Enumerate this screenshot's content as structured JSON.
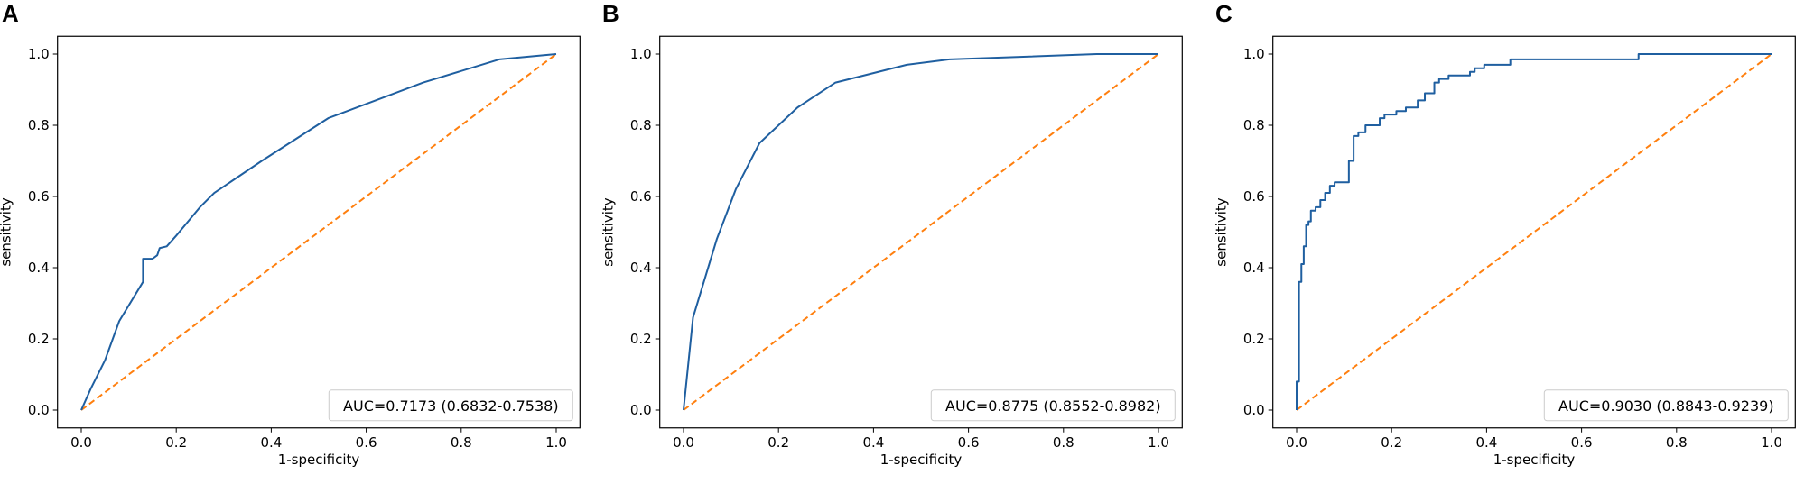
{
  "chart_data": [
    {
      "type": "line",
      "panel_label": "A",
      "xlabel": "1-specificity",
      "ylabel": "sensitivity",
      "xlim": [
        0,
        1
      ],
      "ylim": [
        0,
        1
      ],
      "xticks": [
        "0.0",
        "0.2",
        "0.4",
        "0.6",
        "0.8",
        "1.0"
      ],
      "yticks": [
        "0.0",
        "0.2",
        "0.4",
        "0.6",
        "0.8",
        "1.0"
      ],
      "legend": "AUC=0.7173 (0.6832-0.7538)",
      "legend_position": "lower-right",
      "grid": false,
      "colors": {
        "roc": "#1f5fa0",
        "reference": "#ff7f0e"
      },
      "series": [
        {
          "x": [
            0,
            0.02,
            0.05,
            0.08,
            0.13,
            0.13,
            0.15,
            0.16,
            0.165,
            0.18,
            0.2,
            0.25,
            0.28,
            0.38,
            0.52,
            0.72,
            0.88,
            1.0
          ],
          "y": [
            0,
            0.06,
            0.14,
            0.25,
            0.36,
            0.425,
            0.425,
            0.435,
            0.455,
            0.46,
            0.49,
            0.57,
            0.61,
            0.7,
            0.82,
            0.92,
            0.985,
            1.0
          ]
        },
        {
          "x": [
            0,
            1
          ],
          "y": [
            0,
            1
          ]
        }
      ]
    },
    {
      "type": "line",
      "panel_label": "B",
      "xlabel": "1-specificity",
      "ylabel": "sensitivity",
      "xlim": [
        0,
        1
      ],
      "ylim": [
        0,
        1
      ],
      "xticks": [
        "0.0",
        "0.2",
        "0.4",
        "0.6",
        "0.8",
        "1.0"
      ],
      "yticks": [
        "0.0",
        "0.2",
        "0.4",
        "0.6",
        "0.8",
        "1.0"
      ],
      "legend": "AUC=0.8775 (0.8552-0.8982)",
      "legend_position": "lower-right",
      "grid": false,
      "colors": {
        "roc": "#1f5fa0",
        "reference": "#ff7f0e"
      },
      "series": [
        {
          "x": [
            0,
            0.02,
            0.07,
            0.11,
            0.16,
            0.24,
            0.32,
            0.47,
            0.56,
            0.87,
            1.0
          ],
          "y": [
            0,
            0.26,
            0.48,
            0.62,
            0.75,
            0.85,
            0.92,
            0.97,
            0.985,
            1.0,
            1.0
          ]
        },
        {
          "x": [
            0,
            1
          ],
          "y": [
            0,
            1
          ]
        }
      ]
    },
    {
      "type": "line",
      "panel_label": "C",
      "xlabel": "1-specificity",
      "ylabel": "sensitivity",
      "xlim": [
        0,
        1
      ],
      "ylim": [
        0,
        1
      ],
      "xticks": [
        "0.0",
        "0.2",
        "0.4",
        "0.6",
        "0.8",
        "1.0"
      ],
      "yticks": [
        "0.0",
        "0.2",
        "0.4",
        "0.6",
        "0.8",
        "1.0"
      ],
      "legend": "AUC=0.9030 (0.8843-0.9239)",
      "legend_position": "lower-right",
      "grid": false,
      "colors": {
        "roc": "#1f5fa0",
        "reference": "#ff7f0e"
      },
      "series": [
        {
          "x": [
            0,
            0,
            0.005,
            0.005,
            0.01,
            0.01,
            0.015,
            0.015,
            0.02,
            0.02,
            0.025,
            0.025,
            0.03,
            0.03,
            0.04,
            0.04,
            0.05,
            0.05,
            0.06,
            0.06,
            0.07,
            0.07,
            0.08,
            0.08,
            0.11,
            0.11,
            0.12,
            0.12,
            0.13,
            0.13,
            0.145,
            0.145,
            0.175,
            0.175,
            0.185,
            0.185,
            0.21,
            0.21,
            0.23,
            0.23,
            0.255,
            0.255,
            0.27,
            0.27,
            0.29,
            0.29,
            0.3,
            0.3,
            0.32,
            0.32,
            0.365,
            0.365,
            0.375,
            0.375,
            0.395,
            0.395,
            0.45,
            0.45,
            0.72,
            0.72,
            1.0
          ],
          "y": [
            0,
            0.08,
            0.08,
            0.36,
            0.36,
            0.41,
            0.41,
            0.46,
            0.46,
            0.52,
            0.52,
            0.53,
            0.53,
            0.56,
            0.56,
            0.57,
            0.57,
            0.59,
            0.59,
            0.61,
            0.61,
            0.63,
            0.63,
            0.64,
            0.64,
            0.7,
            0.7,
            0.77,
            0.77,
            0.78,
            0.78,
            0.8,
            0.8,
            0.82,
            0.82,
            0.83,
            0.83,
            0.84,
            0.84,
            0.85,
            0.85,
            0.87,
            0.87,
            0.89,
            0.89,
            0.92,
            0.92,
            0.93,
            0.93,
            0.94,
            0.94,
            0.95,
            0.95,
            0.96,
            0.96,
            0.97,
            0.97,
            0.985,
            0.985,
            1.0,
            1.0
          ]
        },
        {
          "x": [
            0,
            1
          ],
          "y": [
            0,
            1
          ]
        }
      ]
    }
  ]
}
